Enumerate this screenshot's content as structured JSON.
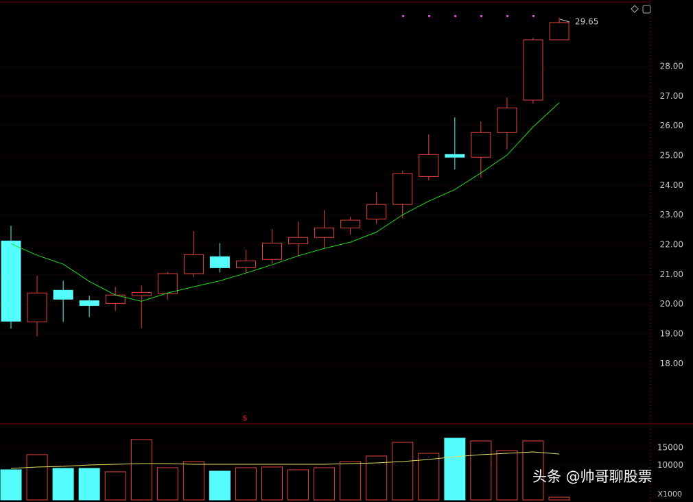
{
  "chart_data": [
    {
      "type": "candlestick",
      "open": [
        22.13,
        19.41,
        20.47,
        20.12,
        20.03,
        20.29,
        20.36,
        21.03,
        21.6,
        21.23,
        21.51,
        22.04,
        22.25,
        22.57,
        22.87,
        23.36,
        24.3,
        25.04,
        24.95,
        25.78,
        26.87,
        28.9
      ],
      "close": [
        19.43,
        20.38,
        20.17,
        19.96,
        20.31,
        20.4,
        21.03,
        21.67,
        21.23,
        21.46,
        22.06,
        22.25,
        22.57,
        22.83,
        23.36,
        24.4,
        25.04,
        24.95,
        25.78,
        26.61,
        28.9,
        29.48
      ],
      "high": [
        22.64,
        20.96,
        20.79,
        20.29,
        20.59,
        20.63,
        21.09,
        22.46,
        22.06,
        21.83,
        22.53,
        22.78,
        23.17,
        22.94,
        23.77,
        24.49,
        25.71,
        26.29,
        26.15,
        26.96,
        28.97,
        29.65
      ],
      "low": [
        19.18,
        18.92,
        19.41,
        19.57,
        19.78,
        19.2,
        20.15,
        20.91,
        21.07,
        21.05,
        21.37,
        21.6,
        21.9,
        22.34,
        22.71,
        22.9,
        24.17,
        24.54,
        24.26,
        25.21,
        26.75,
        28.9
      ],
      "up_color": "#e8423f",
      "down_color": "#54fcfc",
      "ma": {
        "color": "#22dd22",
        "values": [
          22.04,
          21.65,
          21.35,
          20.77,
          20.31,
          20.1,
          20.38,
          20.59,
          20.79,
          21.05,
          21.33,
          21.63,
          21.88,
          22.09,
          22.43,
          23.01,
          23.47,
          23.86,
          24.42,
          25.02,
          25.97,
          26.78
        ]
      },
      "max_label": 29.65,
      "marker": "$",
      "ylim": [
        16.0,
        30.24
      ],
      "yticks": [
        {
          "value": 18,
          "label": "18.00"
        },
        {
          "value": 19,
          "label": "19.00"
        },
        {
          "value": 20,
          "label": "20.00"
        },
        {
          "value": 21,
          "label": "21.00"
        },
        {
          "value": 22,
          "label": "22.00"
        },
        {
          "value": 23,
          "label": "23.00"
        },
        {
          "value": 24,
          "label": "24.00"
        },
        {
          "value": 25,
          "label": "25.00"
        },
        {
          "value": 26,
          "label": "26.00"
        },
        {
          "value": 27,
          "label": "27.00"
        },
        {
          "value": 28,
          "label": "28.00"
        }
      ],
      "grid": true
    },
    {
      "type": "bar",
      "values": [
        8684,
        13026,
        9079,
        9079,
        8092,
        17368,
        9276,
        11053,
        8289,
        9276,
        9474,
        8684,
        9276,
        11053,
        12632,
        16579,
        13421,
        17763,
        16974,
        14211,
        16974,
        789
      ],
      "ma": {
        "color": "#e0e060",
        "values": [
          9079,
          9474,
          9671,
          10066,
          10263,
          10461,
          10461,
          10263,
          10263,
          10263,
          10263,
          10263,
          10263,
          10461,
          10658,
          11053,
          11645,
          12434,
          13026,
          13421,
          13816,
          13224
        ]
      },
      "unit_label": "X1000",
      "ylim": [
        0,
        21500
      ],
      "yticks": [
        10000,
        15000
      ],
      "grid": true
    }
  ],
  "watermark": "头条 @帅哥聊股票"
}
